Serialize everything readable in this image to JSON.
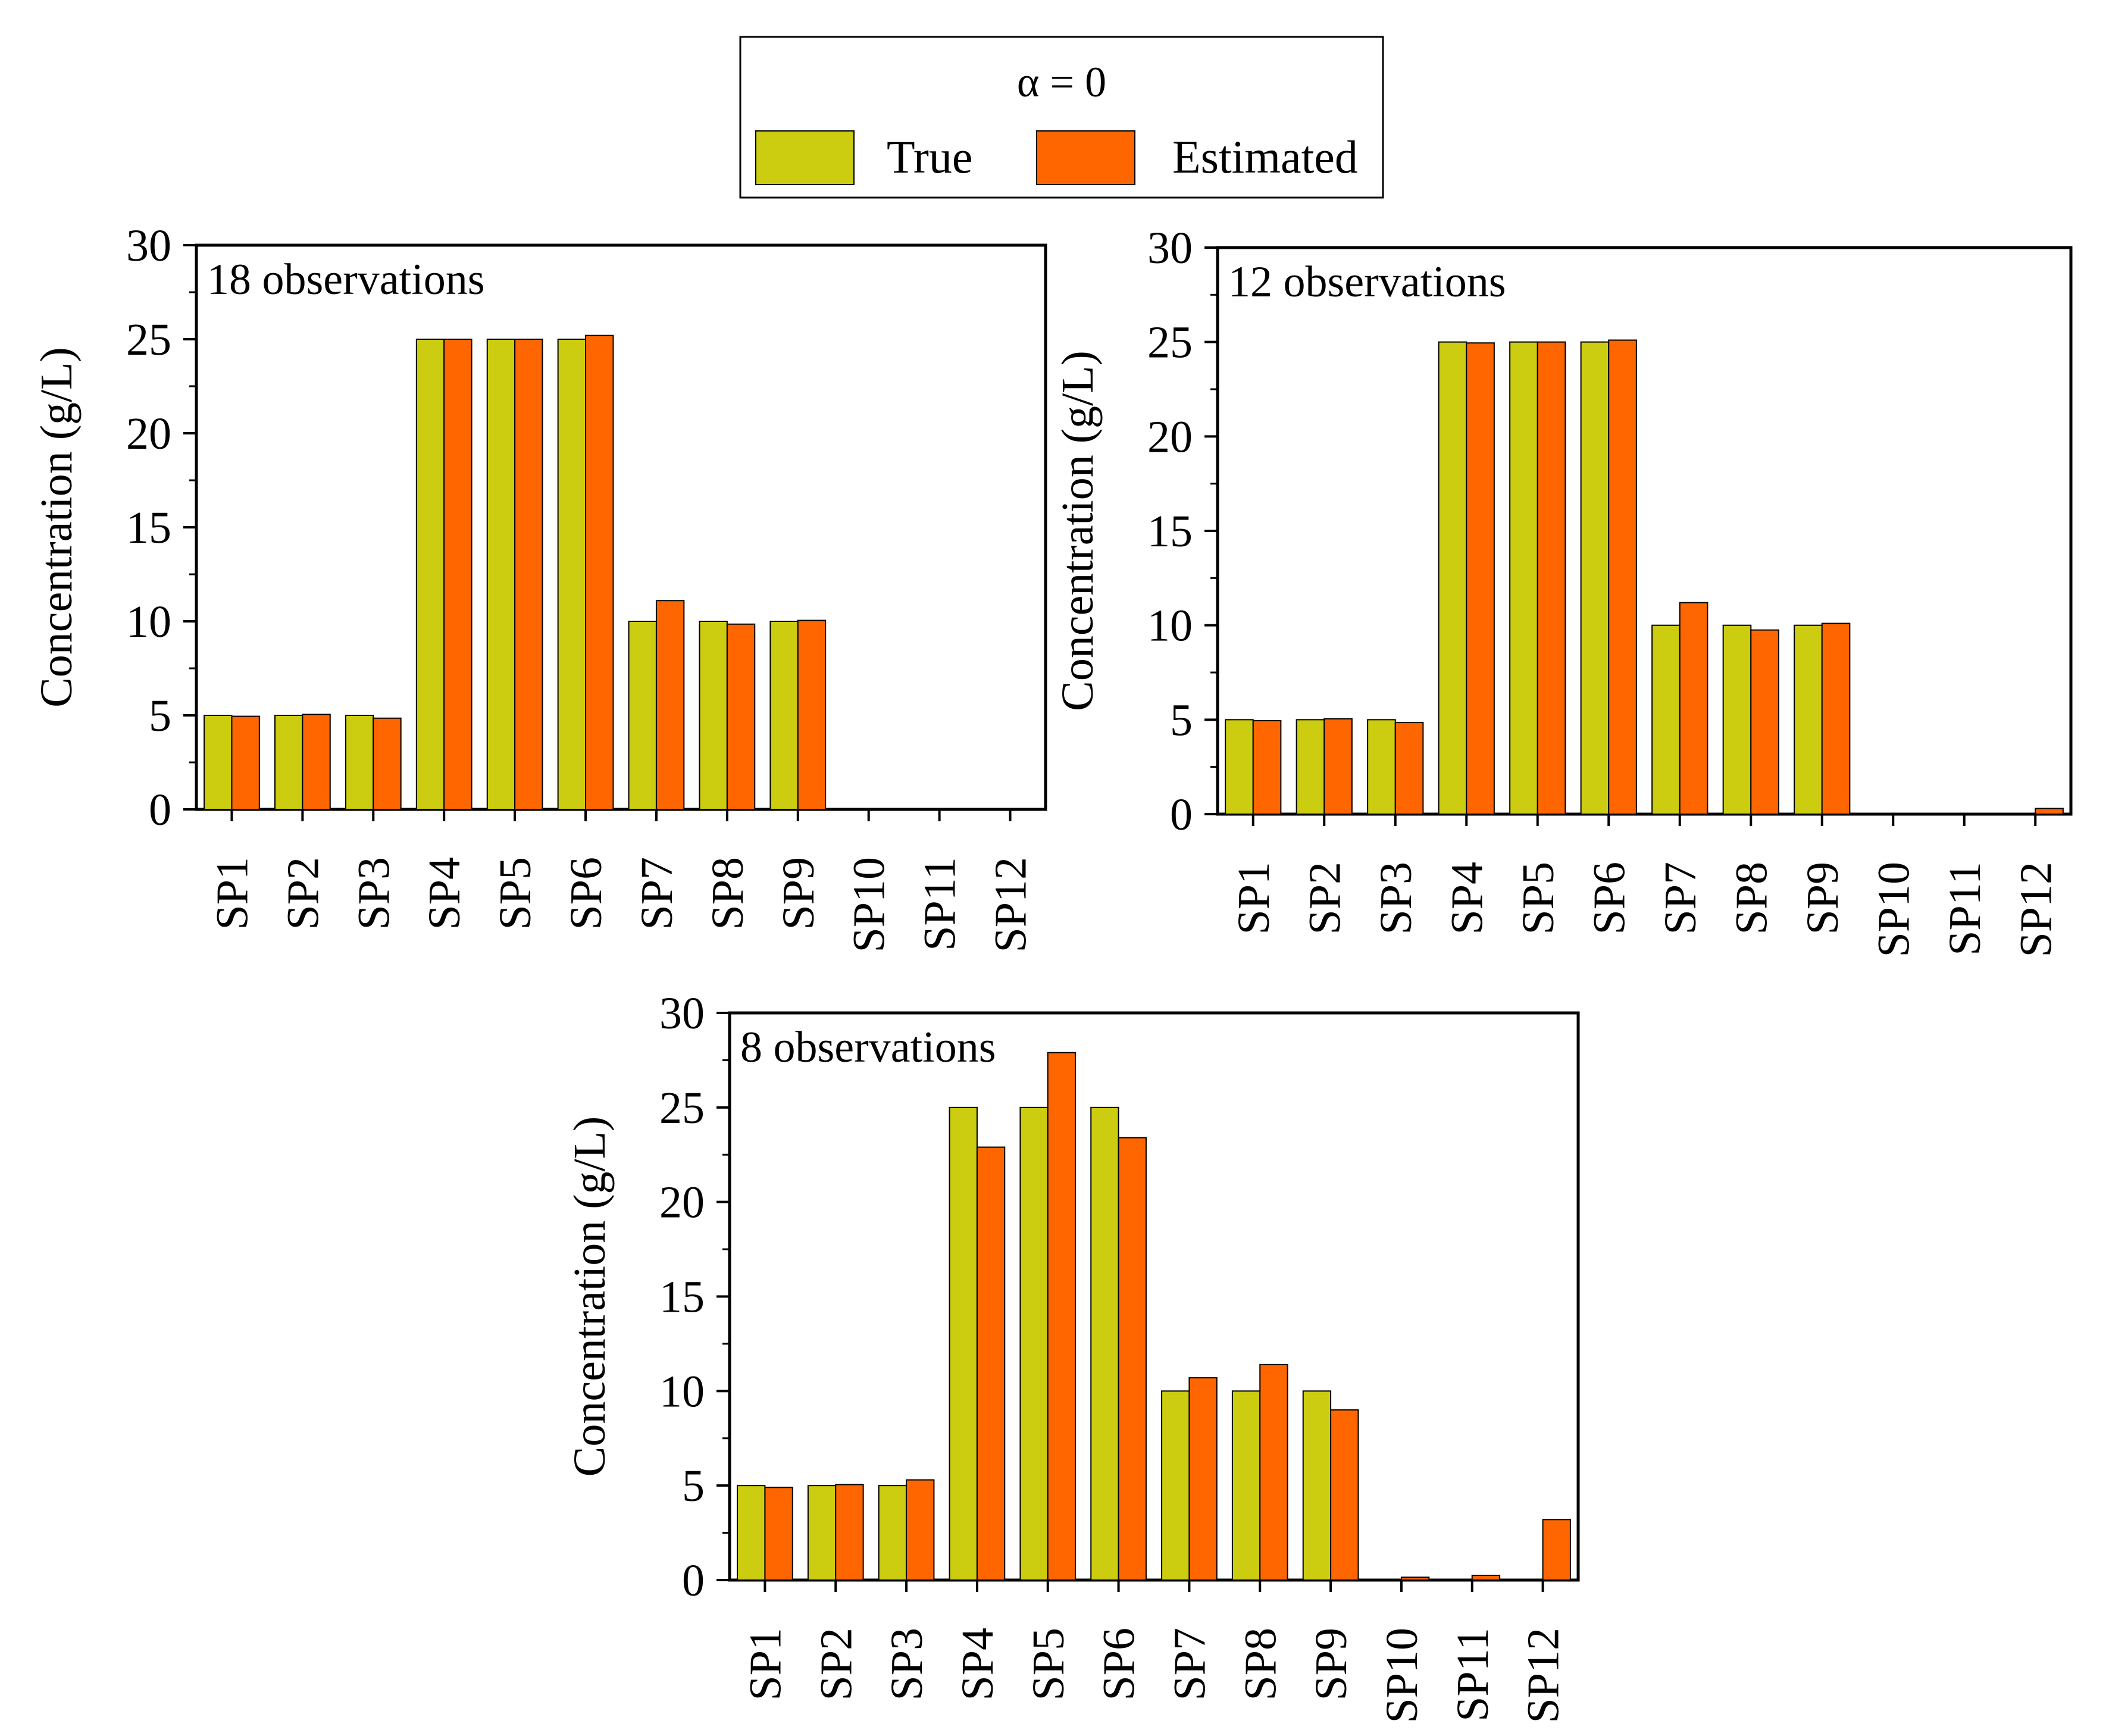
{
  "legend": {
    "title": "α = 0",
    "entries": [
      {
        "label": "True",
        "color": "#cccc10"
      },
      {
        "label": "Estimated",
        "color": "#ff6600"
      }
    ]
  },
  "chart_data": [
    {
      "type": "bar",
      "annotation": "18 observations",
      "ylabel": "Concentration (g/L)",
      "xlabel": "",
      "ylim": [
        0,
        30
      ],
      "yticks": [
        0,
        5,
        10,
        15,
        20,
        25,
        30
      ],
      "categories": [
        "SP1",
        "SP2",
        "SP3",
        "SP4",
        "SP5",
        "SP6",
        "SP7",
        "SP8",
        "SP9",
        "SP10",
        "SP11",
        "SP12"
      ],
      "series": [
        {
          "name": "True",
          "values": [
            5,
            5,
            5,
            25,
            25,
            25,
            10,
            10,
            10,
            0,
            0,
            0
          ]
        },
        {
          "name": "Estimated",
          "values": [
            4.95,
            5.05,
            4.85,
            25.0,
            25.0,
            25.2,
            11.1,
            9.85,
            10.05,
            0,
            0,
            0
          ]
        }
      ]
    },
    {
      "type": "bar",
      "annotation": "12 observations",
      "ylabel": "Concentration (g/L)",
      "xlabel": "",
      "ylim": [
        0,
        30
      ],
      "yticks": [
        0,
        5,
        10,
        15,
        20,
        25,
        30
      ],
      "categories": [
        "SP1",
        "SP2",
        "SP3",
        "SP4",
        "SP5",
        "SP6",
        "SP7",
        "SP8",
        "SP9",
        "SP10",
        "SP11",
        "SP12"
      ],
      "series": [
        {
          "name": "True",
          "values": [
            5,
            5,
            5,
            25,
            25,
            25,
            10,
            10,
            10,
            0,
            0,
            0
          ]
        },
        {
          "name": "Estimated",
          "values": [
            4.95,
            5.05,
            4.85,
            24.95,
            25.0,
            25.1,
            11.2,
            9.75,
            10.1,
            0,
            0,
            0.3
          ]
        }
      ]
    },
    {
      "type": "bar",
      "annotation": "8 observations",
      "ylabel": "Concentration (g/L)",
      "xlabel": "",
      "ylim": [
        0,
        30
      ],
      "yticks": [
        0,
        5,
        10,
        15,
        20,
        25,
        30
      ],
      "categories": [
        "SP1",
        "SP2",
        "SP3",
        "SP4",
        "SP5",
        "SP6",
        "SP7",
        "SP8",
        "SP9",
        "SP10",
        "SP11",
        "SP12"
      ],
      "series": [
        {
          "name": "True",
          "values": [
            5,
            5,
            5,
            25,
            25,
            25,
            10,
            10,
            10,
            0,
            0,
            0
          ]
        },
        {
          "name": "Estimated",
          "values": [
            4.9,
            5.05,
            5.3,
            22.9,
            27.9,
            23.4,
            10.7,
            11.4,
            9.0,
            0.15,
            0.25,
            3.2
          ]
        }
      ]
    }
  ]
}
